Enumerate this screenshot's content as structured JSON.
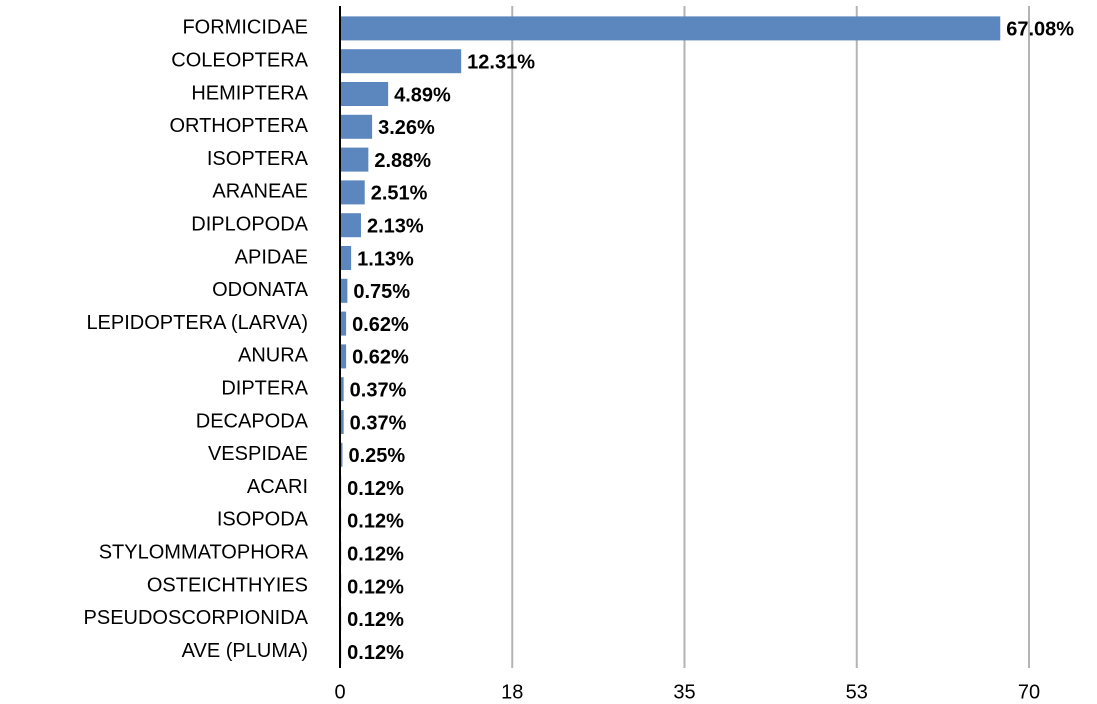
{
  "chart_data": {
    "type": "bar",
    "orientation": "horizontal",
    "categories": [
      "FORMICIDAE",
      "COLEOPTERA",
      "HEMIPTERA",
      "ORTHOPTERA",
      "ISOPTERA",
      "ARANEAE",
      "DIPLOPODA",
      "APIDAE",
      "ODONATA",
      "LEPIDOPTERA (LARVA)",
      "ANURA",
      "DIPTERA",
      "DECAPODA",
      "VESPIDAE",
      "ACARI",
      "ISOPODA",
      "STYLOMMATOPHORA",
      "OSTEICHTHYIES",
      "PSEUDOSCORPIONIDA",
      "AVE (PLUMA)"
    ],
    "values": [
      67.08,
      12.31,
      4.89,
      3.26,
      2.88,
      2.51,
      2.13,
      1.13,
      0.75,
      0.62,
      0.62,
      0.37,
      0.37,
      0.25,
      0.12,
      0.12,
      0.12,
      0.12,
      0.12,
      0.12
    ],
    "value_labels": [
      "67.08%",
      "12.31%",
      "4.89%",
      "3.26%",
      "2.88%",
      "2.51%",
      "2.13%",
      "1.13%",
      "0.75%",
      "0.62%",
      "0.62%",
      "0.37%",
      "0.37%",
      "0.25%",
      "0.12%",
      "0.12%",
      "0.12%",
      "0.12%",
      "0.12%",
      "0.12%"
    ],
    "color": "#5b86be",
    "xlim": [
      0,
      70
    ],
    "xticks": [
      0,
      {
        "value": 17.5,
        "label": "18"
      },
      35,
      {
        "value": 52.5,
        "label": "53"
      },
      70
    ],
    "grid": true
  }
}
